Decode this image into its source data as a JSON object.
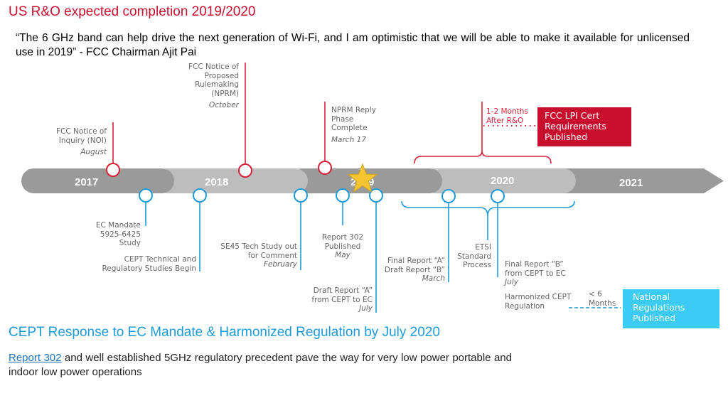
{
  "title": "US R&O expected completion 2019/2020",
  "quote": "“The 6 GHz band can help drive the next generation of Wi-Fi, and I am optimistic that we will be able to make it available for unlicensed use in 2019” - FCC Chairman Ajit Pai",
  "years": [
    "2017",
    "2018",
    "2019",
    "2020",
    "2021"
  ],
  "fcc_events": [
    {
      "label": "FCC Notice of Inquiry (NOI)",
      "date": "August"
    },
    {
      "label": "FCC Notice of Proposed Rulemaking (NPRM)",
      "date": "October"
    },
    {
      "label": "NPRM Reply Phase Complete",
      "date": "March 17"
    }
  ],
  "fcc_followup": {
    "lag": "1-2 Months After R&O",
    "box": "FCC LPI Cert Requirements Published"
  },
  "cept_events": [
    {
      "label": "EC Mandate 5925-6425 Study",
      "date": ""
    },
    {
      "label": "CEPT Technical and Regulatory Studies Begin",
      "date": ""
    },
    {
      "label": "SE45 Tech Study out for Comment",
      "date": "February"
    },
    {
      "label": "Report 302 Published",
      "date": "May"
    },
    {
      "label": "Draft Report “A” from CEPT to EC",
      "date": "July"
    },
    {
      "label": "Final Report “A” Draft Report “B”",
      "date": "March"
    },
    {
      "label": "Final Report “B” from CEPT to EC",
      "date": "July"
    }
  ],
  "etsi": "ETSI Standard Process",
  "harmonized": "Harmonized CEPT Regulation",
  "lag_months": "< 6 Months",
  "national_box": "National Regulations Published",
  "heading2": "CEPT Response to EC Mandate & Harmonized Regulation by July 2020",
  "paragraph": {
    "link": "Report 302",
    "text": " and well established 5GHz regulatory precedent pave the way for very low power portable and indoor low power operations"
  },
  "colors": {
    "fcc_red": "#c8102e",
    "cept_blue": "#1e9bd7",
    "box_blue": "#3ccbf4",
    "bar_dark": "#999999",
    "bar_light": "#bbbbbb",
    "star": "#f5c531"
  }
}
